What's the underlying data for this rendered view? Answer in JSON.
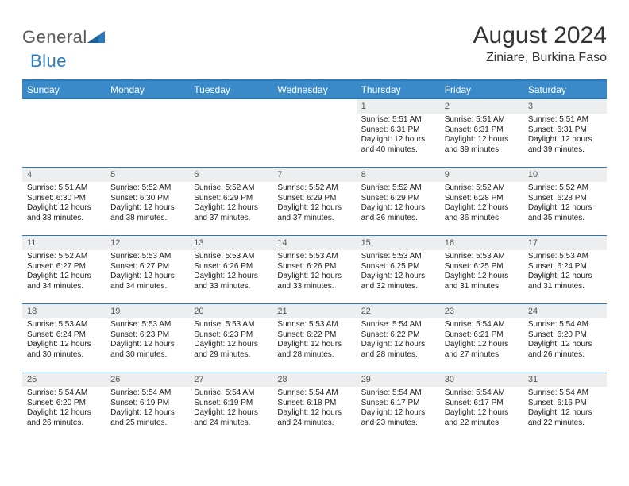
{
  "logo": {
    "text_part1": "General",
    "text_part2": "Blue",
    "text_color_part1": "#5a5a5a",
    "text_color_part2": "#2a78bd",
    "triangle_color": "#2a78bd"
  },
  "header": {
    "month_title": "August 2024",
    "location": "Ziniare, Burkina Faso"
  },
  "styling": {
    "header_bg": "#3a8ac9",
    "header_border": "#2a78bd",
    "row_border": "#2a78bd",
    "daynum_bg": "#eceeef",
    "daynum_color": "#555555",
    "body_text_color": "#222222",
    "page_bg": "#ffffff"
  },
  "weekdays": [
    "Sunday",
    "Monday",
    "Tuesday",
    "Wednesday",
    "Thursday",
    "Friday",
    "Saturday"
  ],
  "weeks": [
    [
      {
        "empty": true
      },
      {
        "empty": true
      },
      {
        "empty": true
      },
      {
        "empty": true
      },
      {
        "num": "1",
        "sunrise": "5:51 AM",
        "sunset": "6:31 PM",
        "daylight": "12 hours and 40 minutes."
      },
      {
        "num": "2",
        "sunrise": "5:51 AM",
        "sunset": "6:31 PM",
        "daylight": "12 hours and 39 minutes."
      },
      {
        "num": "3",
        "sunrise": "5:51 AM",
        "sunset": "6:31 PM",
        "daylight": "12 hours and 39 minutes."
      }
    ],
    [
      {
        "num": "4",
        "sunrise": "5:51 AM",
        "sunset": "6:30 PM",
        "daylight": "12 hours and 38 minutes."
      },
      {
        "num": "5",
        "sunrise": "5:52 AM",
        "sunset": "6:30 PM",
        "daylight": "12 hours and 38 minutes."
      },
      {
        "num": "6",
        "sunrise": "5:52 AM",
        "sunset": "6:29 PM",
        "daylight": "12 hours and 37 minutes."
      },
      {
        "num": "7",
        "sunrise": "5:52 AM",
        "sunset": "6:29 PM",
        "daylight": "12 hours and 37 minutes."
      },
      {
        "num": "8",
        "sunrise": "5:52 AM",
        "sunset": "6:29 PM",
        "daylight": "12 hours and 36 minutes."
      },
      {
        "num": "9",
        "sunrise": "5:52 AM",
        "sunset": "6:28 PM",
        "daylight": "12 hours and 36 minutes."
      },
      {
        "num": "10",
        "sunrise": "5:52 AM",
        "sunset": "6:28 PM",
        "daylight": "12 hours and 35 minutes."
      }
    ],
    [
      {
        "num": "11",
        "sunrise": "5:52 AM",
        "sunset": "6:27 PM",
        "daylight": "12 hours and 34 minutes."
      },
      {
        "num": "12",
        "sunrise": "5:53 AM",
        "sunset": "6:27 PM",
        "daylight": "12 hours and 34 minutes."
      },
      {
        "num": "13",
        "sunrise": "5:53 AM",
        "sunset": "6:26 PM",
        "daylight": "12 hours and 33 minutes."
      },
      {
        "num": "14",
        "sunrise": "5:53 AM",
        "sunset": "6:26 PM",
        "daylight": "12 hours and 33 minutes."
      },
      {
        "num": "15",
        "sunrise": "5:53 AM",
        "sunset": "6:25 PM",
        "daylight": "12 hours and 32 minutes."
      },
      {
        "num": "16",
        "sunrise": "5:53 AM",
        "sunset": "6:25 PM",
        "daylight": "12 hours and 31 minutes."
      },
      {
        "num": "17",
        "sunrise": "5:53 AM",
        "sunset": "6:24 PM",
        "daylight": "12 hours and 31 minutes."
      }
    ],
    [
      {
        "num": "18",
        "sunrise": "5:53 AM",
        "sunset": "6:24 PM",
        "daylight": "12 hours and 30 minutes."
      },
      {
        "num": "19",
        "sunrise": "5:53 AM",
        "sunset": "6:23 PM",
        "daylight": "12 hours and 30 minutes."
      },
      {
        "num": "20",
        "sunrise": "5:53 AM",
        "sunset": "6:23 PM",
        "daylight": "12 hours and 29 minutes."
      },
      {
        "num": "21",
        "sunrise": "5:53 AM",
        "sunset": "6:22 PM",
        "daylight": "12 hours and 28 minutes."
      },
      {
        "num": "22",
        "sunrise": "5:54 AM",
        "sunset": "6:22 PM",
        "daylight": "12 hours and 28 minutes."
      },
      {
        "num": "23",
        "sunrise": "5:54 AM",
        "sunset": "6:21 PM",
        "daylight": "12 hours and 27 minutes."
      },
      {
        "num": "24",
        "sunrise": "5:54 AM",
        "sunset": "6:20 PM",
        "daylight": "12 hours and 26 minutes."
      }
    ],
    [
      {
        "num": "25",
        "sunrise": "5:54 AM",
        "sunset": "6:20 PM",
        "daylight": "12 hours and 26 minutes."
      },
      {
        "num": "26",
        "sunrise": "5:54 AM",
        "sunset": "6:19 PM",
        "daylight": "12 hours and 25 minutes."
      },
      {
        "num": "27",
        "sunrise": "5:54 AM",
        "sunset": "6:19 PM",
        "daylight": "12 hours and 24 minutes."
      },
      {
        "num": "28",
        "sunrise": "5:54 AM",
        "sunset": "6:18 PM",
        "daylight": "12 hours and 24 minutes."
      },
      {
        "num": "29",
        "sunrise": "5:54 AM",
        "sunset": "6:17 PM",
        "daylight": "12 hours and 23 minutes."
      },
      {
        "num": "30",
        "sunrise": "5:54 AM",
        "sunset": "6:17 PM",
        "daylight": "12 hours and 22 minutes."
      },
      {
        "num": "31",
        "sunrise": "5:54 AM",
        "sunset": "6:16 PM",
        "daylight": "12 hours and 22 minutes."
      }
    ]
  ],
  "labels": {
    "sunrise_prefix": "Sunrise: ",
    "sunset_prefix": "Sunset: ",
    "daylight_prefix": "Daylight: "
  }
}
